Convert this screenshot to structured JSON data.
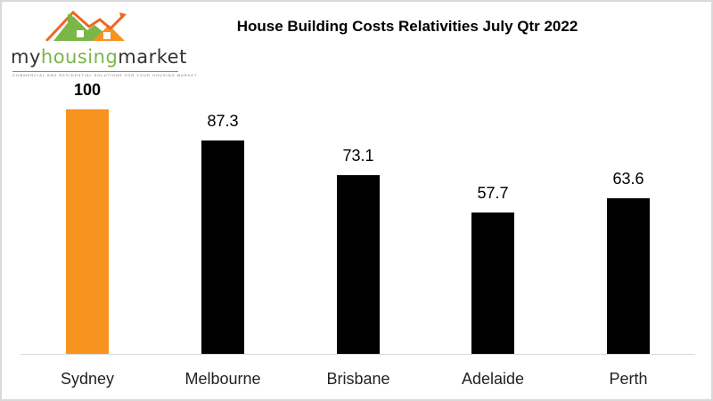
{
  "logo": {
    "text_prefix": "my",
    "text_highlight": "housing",
    "text_suffix": "market",
    "tagline": "COMMERCIAL AND RESIDENTIAL SOLUTIONS FOR YOUR HOUSING MARKET"
  },
  "colors": {
    "highlight": "#f7931e",
    "default": "#000000",
    "axis": "#d9d9d9"
  },
  "chart_data": {
    "type": "bar",
    "title": "House Building Costs Relativities July Qtr 2022",
    "categories": [
      "Sydney",
      "Melbourne",
      "Brisbane",
      "Adelaide",
      "Perth"
    ],
    "values": [
      100,
      87.3,
      73.1,
      57.7,
      63.6
    ],
    "value_labels": [
      "100",
      "87.3",
      "73.1",
      "57.7",
      "63.6"
    ],
    "xlabel": "",
    "ylabel": "",
    "ylim": [
      0,
      100
    ],
    "grid": false,
    "legend": "none",
    "highlighted_category": "Sydney"
  }
}
